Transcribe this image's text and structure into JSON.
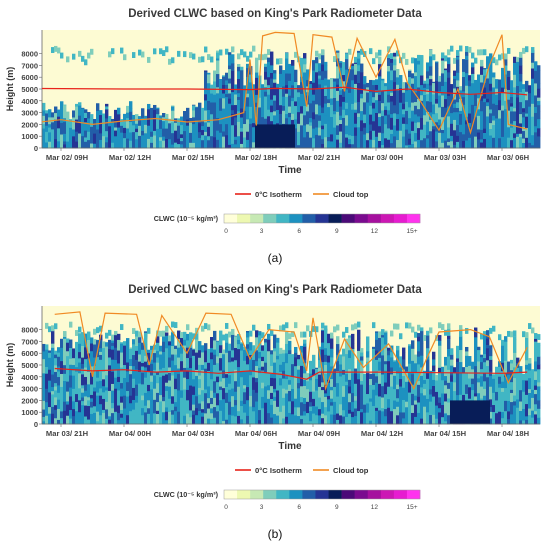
{
  "colors": {
    "plot_bg": "#fdfbd3",
    "isotherm": "#e8231b",
    "cloud_top": "#f08a24",
    "colorbar": [
      "#ffffd9",
      "#edf8b1",
      "#c7e9b4",
      "#7fcdbb",
      "#41b6c4",
      "#1d91c0",
      "#225ea8",
      "#253494",
      "#081d58",
      "#4b0a78",
      "#7a0b8f",
      "#a5109e",
      "#cc17b4",
      "#e61cd0",
      "#ff33ee"
    ]
  },
  "chart_data": [
    {
      "type": "heatmap",
      "panel_label": "(a)",
      "title": "Derived CLWC based on King's Park Radiometer Data",
      "xlabel": "Time",
      "ylabel": "Height (m)",
      "ylim": [
        0,
        10000
      ],
      "yticks": [
        0,
        1000,
        2000,
        3000,
        4000,
        5000,
        6000,
        7000,
        8000
      ],
      "xticks": [
        "Mar 02/ 09H",
        "Mar 02/ 12H",
        "Mar 02/ 15H",
        "Mar 02/ 18H",
        "Mar 02/ 21H",
        "Mar 03/ 00H",
        "Mar 03/ 03H",
        "Mar 03/ 06H"
      ],
      "legend": [
        {
          "name": "0°C Isotherm",
          "color": "#e8231b"
        },
        {
          "name": "Cloud top",
          "color": "#f08a24"
        }
      ],
      "legend_position": "bottom-center",
      "colorbar": {
        "label": "CLWC (10⁻⁵ kg/m³)",
        "ticks": [
          "0",
          "3",
          "6",
          "9",
          "12",
          "15+"
        ]
      },
      "isotherm_m": [
        {
          "t": -0.5,
          "h": 5050
        },
        {
          "t": 1,
          "h": 5000
        },
        {
          "t": 2,
          "h": 5000
        },
        {
          "t": 3,
          "h": 4950
        },
        {
          "t": 3.4,
          "h": 5050
        },
        {
          "t": 4,
          "h": 5000
        },
        {
          "t": 4.5,
          "h": 5150
        },
        {
          "t": 5,
          "h": 4800
        },
        {
          "t": 5.5,
          "h": 5000
        },
        {
          "t": 6,
          "h": 4700
        },
        {
          "t": 6.5,
          "h": 4550
        },
        {
          "t": 7,
          "h": 4700
        },
        {
          "t": 7.4,
          "h": 4500
        }
      ],
      "cloud_top_m": [
        {
          "t": -0.5,
          "h": 2100
        },
        {
          "t": 0,
          "h": 2400
        },
        {
          "t": 0.5,
          "h": 2000
        },
        {
          "t": 1,
          "h": 2300
        },
        {
          "t": 1.5,
          "h": 2500
        },
        {
          "t": 2,
          "h": 2200
        },
        {
          "t": 2.5,
          "h": 2400
        },
        {
          "t": 2.9,
          "h": 3000
        },
        {
          "t": 3.0,
          "h": 7500
        },
        {
          "t": 3.1,
          "h": 1900
        },
        {
          "t": 3.2,
          "h": 9500
        },
        {
          "t": 3.4,
          "h": 9800
        },
        {
          "t": 3.7,
          "h": 9700
        },
        {
          "t": 3.9,
          "h": 3500
        },
        {
          "t": 4.0,
          "h": 9600
        },
        {
          "t": 4.3,
          "h": 9400
        },
        {
          "t": 4.5,
          "h": 4800
        },
        {
          "t": 4.7,
          "h": 9300
        },
        {
          "t": 5.0,
          "h": 6000
        },
        {
          "t": 5.3,
          "h": 9200
        },
        {
          "t": 5.5,
          "h": 5500
        },
        {
          "t": 5.7,
          "h": 4000
        },
        {
          "t": 6.0,
          "h": 1500
        },
        {
          "t": 6.3,
          "h": 5000
        },
        {
          "t": 6.5,
          "h": 1300
        },
        {
          "t": 6.8,
          "h": 7000
        },
        {
          "t": 7.0,
          "h": 9600
        },
        {
          "t": 7.1,
          "h": 2000
        },
        {
          "t": 7.4,
          "h": 1600
        }
      ]
    },
    {
      "type": "heatmap",
      "panel_label": "(b)",
      "title": "Derived CLWC based on King's Park Radiometer Data",
      "xlabel": "Time",
      "ylabel": "Height (m)",
      "ylim": [
        0,
        10000
      ],
      "yticks": [
        0,
        1000,
        2000,
        3000,
        4000,
        5000,
        6000,
        7000,
        8000
      ],
      "xticks": [
        "Mar 03/ 21H",
        "Mar 04/ 00H",
        "Mar 04/ 03H",
        "Mar 04/ 06H",
        "Mar 04/ 09H",
        "Mar 04/ 12H",
        "Mar 04/ 15H",
        "Mar 04/ 18H"
      ],
      "legend": [
        {
          "name": "0°C Isotherm",
          "color": "#e8231b"
        },
        {
          "name": "Cloud top",
          "color": "#f08a24"
        }
      ],
      "legend_position": "bottom-center",
      "colorbar": {
        "label": "CLWC (10⁻⁵ kg/m³)",
        "ticks": [
          "0",
          "3",
          "6",
          "9",
          "12",
          "15+"
        ]
      },
      "isotherm_m": [
        {
          "t": -0.1,
          "h": 4700
        },
        {
          "t": 0.5,
          "h": 4500
        },
        {
          "t": 1,
          "h": 4600
        },
        {
          "t": 1.5,
          "h": 4400
        },
        {
          "t": 2,
          "h": 4500
        },
        {
          "t": 2.5,
          "h": 4300
        },
        {
          "t": 3,
          "h": 4500
        },
        {
          "t": 3.5,
          "h": 4200
        },
        {
          "t": 3.9,
          "h": 3800
        },
        {
          "t": 4.1,
          "h": 4400
        },
        {
          "t": 5,
          "h": 4400
        },
        {
          "t": 6,
          "h": 4350
        },
        {
          "t": 7,
          "h": 4300
        },
        {
          "t": 7.4,
          "h": 4400
        }
      ],
      "cloud_top_m": [
        {
          "t": -0.1,
          "h": 9300
        },
        {
          "t": 0.3,
          "h": 9500
        },
        {
          "t": 0.5,
          "h": 4000
        },
        {
          "t": 0.7,
          "h": 9400
        },
        {
          "t": 1.2,
          "h": 9300
        },
        {
          "t": 1.4,
          "h": 5000
        },
        {
          "t": 1.6,
          "h": 9200
        },
        {
          "t": 2.0,
          "h": 6000
        },
        {
          "t": 2.3,
          "h": 9400
        },
        {
          "t": 2.7,
          "h": 9300
        },
        {
          "t": 3.0,
          "h": 5500
        },
        {
          "t": 3.3,
          "h": 8000
        },
        {
          "t": 3.7,
          "h": 7800
        },
        {
          "t": 3.9,
          "h": 4500
        },
        {
          "t": 4.0,
          "h": 9000
        },
        {
          "t": 4.2,
          "h": 3000
        },
        {
          "t": 4.5,
          "h": 7200
        },
        {
          "t": 4.8,
          "h": 4800
        },
        {
          "t": 5.2,
          "h": 6800
        },
        {
          "t": 5.6,
          "h": 3000
        },
        {
          "t": 5.8,
          "h": 5500
        },
        {
          "t": 6.0,
          "h": 7800
        },
        {
          "t": 6.5,
          "h": 8000
        },
        {
          "t": 6.8,
          "h": 7400
        },
        {
          "t": 7.1,
          "h": 3500
        },
        {
          "t": 7.4,
          "h": 6500
        }
      ]
    }
  ]
}
